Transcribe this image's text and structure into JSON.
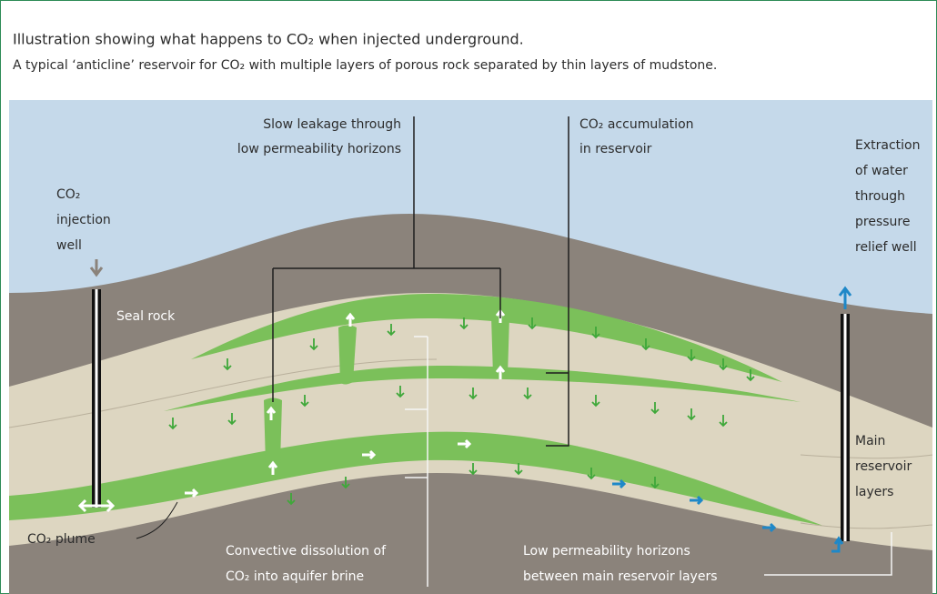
{
  "caption": {
    "title": "Illustration showing what happens to CO₂ when injected underground.",
    "subtitle": "A typical ‘anticline’ reservoir for CO₂ with multiple layers of porous rock separated by thin layers of mudstone."
  },
  "labels": {
    "leakage": [
      "Slow leakage through",
      "low permeability horizons"
    ],
    "accumulation": [
      "CO₂ accumulation",
      "in reservoir"
    ],
    "extraction": [
      "Extraction",
      "of water",
      "through",
      "pressure",
      "relief well"
    ],
    "injection": [
      "CO₂",
      "injection",
      "well"
    ],
    "seal": "Seal rock",
    "main": [
      "Main",
      "reservoir",
      "layers"
    ],
    "plume": "CO₂ plume",
    "convective": [
      "Convective dissolution of",
      "CO₂ into aquifer brine"
    ],
    "horizons": [
      "Low permeability horizons",
      "between main reservoir layers"
    ]
  }
}
